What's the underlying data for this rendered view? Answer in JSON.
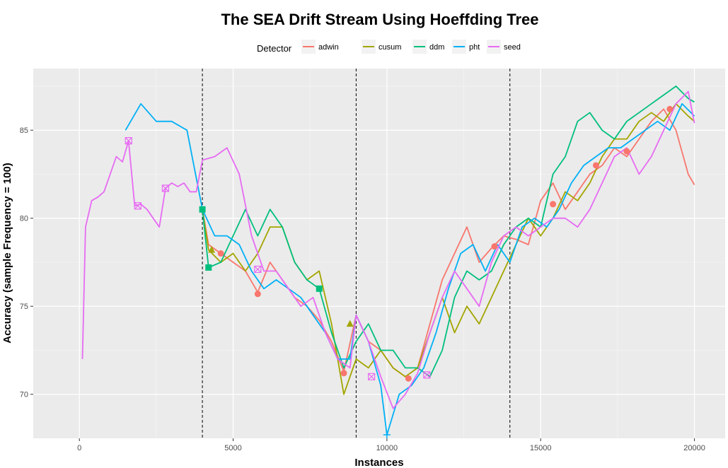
{
  "chart_data": {
    "type": "line",
    "title": "The SEA Drift Stream Using Hoeffding Tree",
    "xlabel": "Instances",
    "ylabel": "Accuracy (sample Frequency = 100)",
    "xlim": [
      -1500,
      21000
    ],
    "ylim": [
      67.5,
      88.5
    ],
    "x_ticks": [
      0,
      5000,
      10000,
      15000,
      20000
    ],
    "x_tick_labels": [
      "0",
      "5000",
      "10000",
      "15000",
      "20000"
    ],
    "y_ticks": [
      70,
      75,
      80,
      85
    ],
    "y_tick_labels": [
      "70",
      "75",
      "80",
      "85"
    ],
    "drift_lines": [
      4000,
      9000,
      14000
    ],
    "grid": true,
    "legend": {
      "title": "Detector",
      "position": "top"
    },
    "series": [
      {
        "name": "adwin",
        "color": "#F8766D",
        "marker": "circle",
        "x": [
          4000,
          4200,
          4600,
          5000,
          5400,
          5800,
          6200,
          6600,
          7000,
          7400,
          7800,
          8200,
          8600,
          9000,
          9400,
          9800,
          10200,
          10600,
          11000,
          11400,
          11800,
          12200,
          12600,
          13000,
          13400,
          13800,
          14200,
          14600,
          15000,
          15400,
          15800,
          16200,
          16600,
          17000,
          17400,
          17800,
          18200,
          18600,
          19000,
          19400,
          19800,
          20000
        ],
        "y": [
          80.5,
          78.5,
          78.0,
          77.5,
          77.0,
          75.8,
          77.5,
          76.5,
          75.5,
          75.0,
          74.2,
          73.0,
          71.3,
          74.5,
          73.0,
          72.5,
          71.5,
          71.0,
          71.5,
          74.0,
          76.5,
          78.0,
          79.5,
          77.5,
          78.3,
          79.0,
          78.8,
          78.5,
          81.0,
          82.0,
          80.5,
          81.5,
          82.5,
          83.0,
          84.0,
          83.5,
          84.5,
          85.5,
          86.2,
          85.0,
          82.5,
          81.9
        ],
        "marker_x": [
          4600,
          5800,
          8600,
          10700,
          13500,
          15400,
          16800,
          17800,
          19200
        ],
        "marker_y": [
          78.0,
          75.7,
          71.2,
          70.9,
          78.4,
          80.8,
          83.0,
          83.8,
          86.2
        ]
      },
      {
        "name": "cusum",
        "color": "#A3A500",
        "marker": "triangle",
        "x": [
          4000,
          4200,
          4600,
          5000,
          5400,
          5800,
          6200,
          6600,
          7000,
          7400,
          7800,
          8200,
          8600,
          9000,
          9400,
          9800,
          10200,
          10600,
          11000,
          11400,
          11800,
          12200,
          12600,
          13000,
          13400,
          13800,
          14200,
          14600,
          15000,
          15400,
          15800,
          16200,
          16600,
          17000,
          17400,
          17800,
          18200,
          18600,
          19000,
          19400,
          19800,
          20000
        ],
        "y": [
          80.5,
          78.2,
          77.5,
          78.0,
          77.0,
          78.0,
          79.5,
          79.5,
          77.5,
          76.5,
          77.0,
          74.0,
          70.0,
          72.0,
          71.5,
          72.5,
          71.5,
          71.0,
          71.5,
          73.5,
          75.5,
          73.5,
          75.0,
          74.0,
          75.5,
          77.0,
          78.5,
          80.0,
          79.0,
          80.0,
          81.5,
          81.0,
          82.0,
          83.5,
          84.5,
          84.5,
          85.5,
          86.0,
          85.5,
          86.5,
          85.8,
          85.5
        ],
        "marker_x": [
          4300,
          8800
        ],
        "marker_y": [
          78.2,
          74.0
        ]
      },
      {
        "name": "ddm",
        "color": "#00BF7D",
        "marker": "square",
        "x": [
          4000,
          4200,
          4600,
          5000,
          5400,
          5800,
          6200,
          6600,
          7000,
          7400,
          7800,
          8200,
          8600,
          9000,
          9400,
          9800,
          10200,
          10600,
          11000,
          11400,
          11800,
          12200,
          12600,
          13000,
          13400,
          13800,
          14200,
          14600,
          15000,
          15400,
          15800,
          16200,
          16600,
          17000,
          17400,
          17800,
          18200,
          18600,
          19000,
          19400,
          19800,
          20000
        ],
        "y": [
          80.5,
          77.2,
          77.5,
          79.0,
          80.5,
          79.0,
          80.5,
          79.5,
          77.5,
          76.5,
          76.0,
          73.5,
          71.5,
          73.0,
          74.0,
          72.5,
          72.5,
          71.5,
          71.5,
          71.0,
          72.5,
          75.5,
          77.0,
          76.5,
          77.0,
          78.5,
          79.5,
          80.0,
          79.5,
          82.5,
          83.5,
          85.5,
          86.0,
          85.0,
          84.5,
          85.5,
          86.0,
          86.5,
          87.0,
          87.5,
          86.8,
          86.6
        ],
        "marker_x": [
          4000,
          4200,
          7800
        ],
        "marker_y": [
          80.5,
          77.2,
          76.0
        ]
      },
      {
        "name": "pht",
        "color": "#00B0F6",
        "marker": "plus",
        "x": [
          1500,
          2000,
          2500,
          3000,
          3500,
          4000,
          4400,
          4800,
          5200,
          5600,
          6000,
          6400,
          6800,
          7200,
          7600,
          8000,
          8400,
          8800,
          9000,
          9400,
          9800,
          10000,
          10400,
          10800,
          11200,
          11600,
          12000,
          12400,
          12800,
          13200,
          13600,
          14000,
          14400,
          14800,
          15200,
          15600,
          16000,
          16400,
          16800,
          17200,
          17600,
          18000,
          18400,
          18800,
          19200,
          19600,
          20000
        ],
        "y": [
          85.0,
          86.5,
          85.5,
          85.5,
          85.0,
          80.5,
          79.0,
          79.0,
          78.5,
          77.0,
          76.0,
          76.5,
          76.0,
          75.5,
          74.5,
          73.5,
          72.0,
          72.0,
          74.5,
          73.0,
          70.5,
          67.7,
          70.0,
          70.5,
          71.5,
          73.5,
          76.0,
          78.0,
          78.5,
          77.0,
          78.5,
          77.5,
          79.5,
          80.0,
          79.5,
          80.5,
          82.0,
          83.0,
          83.5,
          84.0,
          84.0,
          84.5,
          85.0,
          85.5,
          85.0,
          86.5,
          85.8
        ],
        "marker_x": [
          10000
        ],
        "marker_y": [
          67.7
        ]
      },
      {
        "name": "seed",
        "color": "#E76BF3",
        "marker": "square-cross",
        "x": [
          100,
          200,
          400,
          600,
          800,
          1000,
          1200,
          1400,
          1600,
          1800,
          2000,
          2200,
          2400,
          2600,
          2800,
          3000,
          3200,
          3400,
          3600,
          3800,
          4000,
          4400,
          4800,
          5200,
          5600,
          6000,
          6400,
          6800,
          7200,
          7600,
          8000,
          8400,
          8800,
          9000,
          9400,
          9800,
          10200,
          10600,
          11000,
          11400,
          11800,
          12200,
          12600,
          13000,
          13400,
          13800,
          14200,
          14600,
          15000,
          15400,
          15800,
          16200,
          16600,
          17000,
          17400,
          17800,
          18200,
          18600,
          19000,
          19400,
          19800,
          20000
        ],
        "y": [
          72.0,
          79.5,
          81.0,
          81.2,
          81.5,
          82.5,
          83.5,
          83.2,
          84.4,
          80.7,
          80.8,
          80.5,
          80.0,
          79.5,
          81.7,
          82.0,
          81.8,
          82.0,
          81.5,
          81.5,
          83.3,
          83.5,
          84.0,
          82.5,
          79.0,
          77.0,
          77.0,
          76.0,
          75.0,
          75.5,
          73.5,
          72.0,
          71.5,
          74.5,
          73.0,
          71.0,
          69.2,
          70.0,
          71.2,
          73.5,
          75.5,
          77.0,
          76.0,
          75.0,
          77.5,
          79.0,
          79.5,
          79.0,
          79.5,
          80.0,
          80.0,
          79.5,
          80.5,
          82.0,
          83.5,
          84.0,
          82.5,
          83.5,
          85.0,
          86.5,
          87.2,
          85.4
        ],
        "marker_x": [
          1600,
          1900,
          2800,
          5800,
          9500,
          11300
        ],
        "marker_y": [
          84.4,
          80.7,
          81.7,
          77.1,
          71.0,
          71.1
        ]
      }
    ]
  }
}
